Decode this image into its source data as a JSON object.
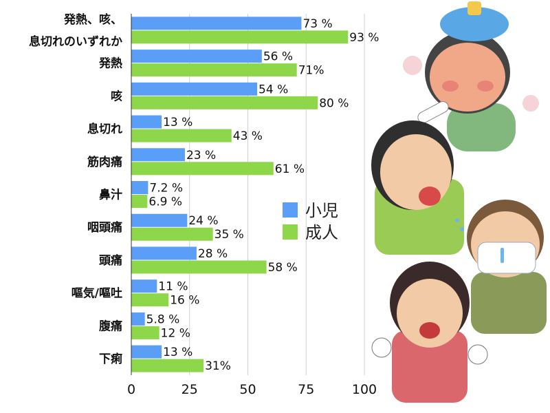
{
  "chart_data": {
    "type": "bar",
    "orientation": "horizontal",
    "categories": [
      [
        "発熱、咳、",
        "息切れのいずれか"
      ],
      [
        "発熱"
      ],
      [
        "咳"
      ],
      [
        "息切れ"
      ],
      [
        "筋肉痛"
      ],
      [
        "鼻汁"
      ],
      [
        "咽頭痛"
      ],
      [
        "頭痛"
      ],
      [
        "嘔気/嘔吐"
      ],
      [
        "腹痛"
      ],
      [
        "下痢"
      ]
    ],
    "series": [
      {
        "name": "小児",
        "color": "#5b9ef8",
        "values": [
          73,
          56,
          54,
          13,
          23,
          7.2,
          24,
          28,
          11,
          5.8,
          13
        ],
        "labels": [
          "73 %",
          "56 %",
          "54 %",
          "13 %",
          "23 %",
          "7.2 %",
          "24 %",
          "28 %",
          "11 %",
          "5.8 %",
          "13 %"
        ]
      },
      {
        "name": "成人",
        "color": "#8ed64a",
        "values": [
          93,
          71,
          80,
          43,
          61,
          6.9,
          35,
          58,
          16,
          12,
          31
        ],
        "labels": [
          "93 %",
          "71%",
          "80 %",
          "43 %",
          "61 %",
          "6.9 %",
          "35 %",
          "58 %",
          "16 %",
          "12 %",
          "31%"
        ]
      }
    ],
    "xlim": [
      0,
      100
    ],
    "xticks": [
      0,
      25,
      50,
      75,
      100
    ],
    "grid": true,
    "legend_position": "right"
  },
  "illustrations": [
    "sick-girl-with-ice-pack-and-thermometer",
    "coughing-boy",
    "boy-with-mask-and-runny-nose",
    "coughing-woman"
  ]
}
